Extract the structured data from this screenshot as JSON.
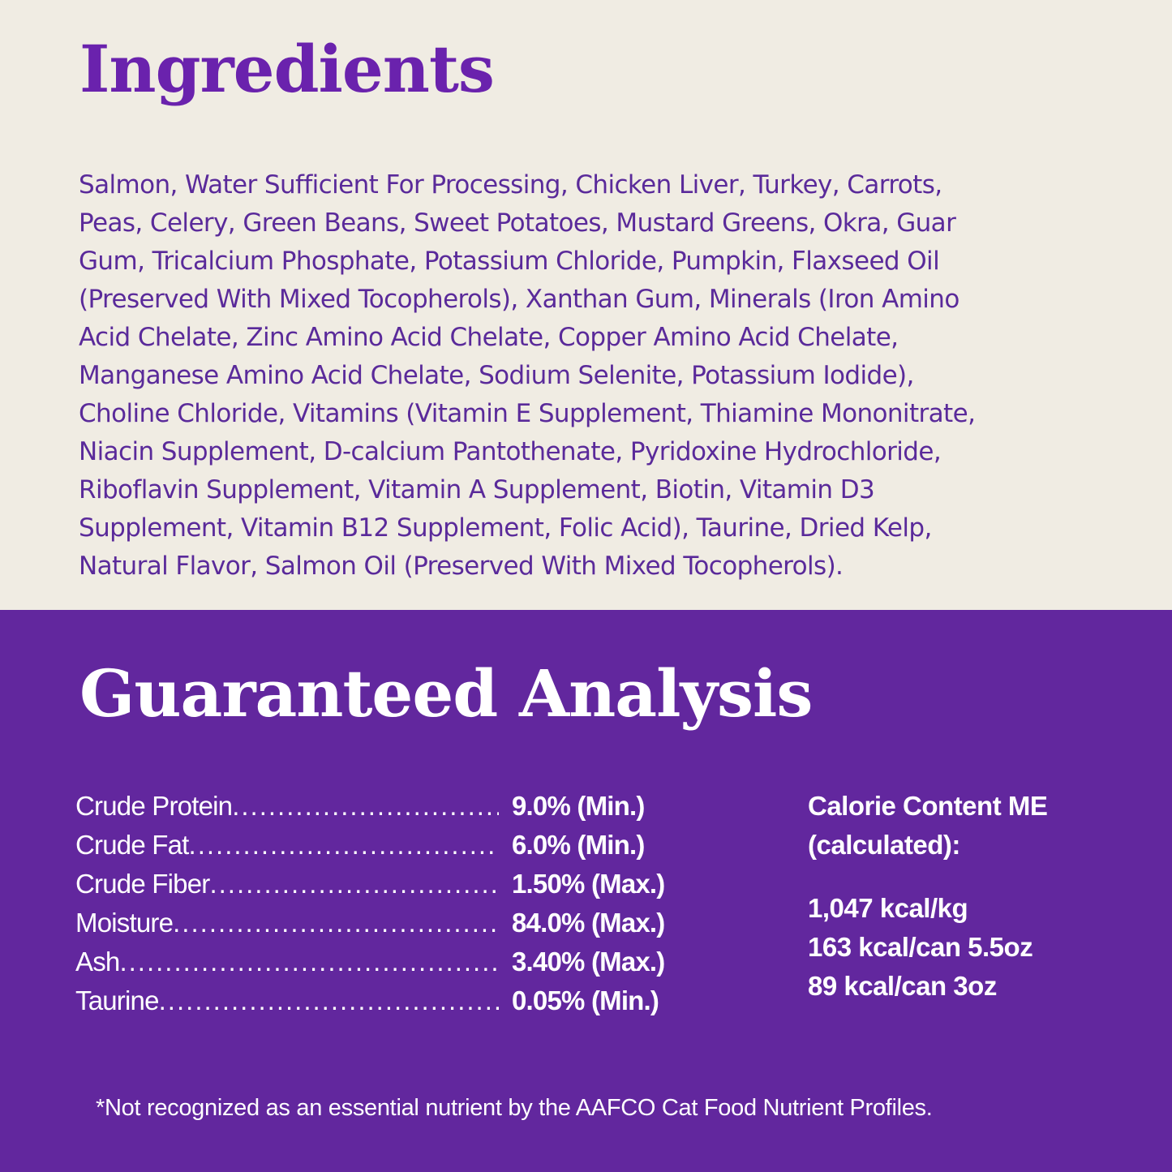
{
  "ingredients": {
    "title": "Ingredients",
    "lines": [
      "Salmon, Water Sufficient For Processing, Chicken Liver, Turkey, Carrots,",
      "Peas, Celery, Green Beans, Sweet Potatoes, Mustard Greens, Okra, Guar",
      "Gum, Tricalcium Phosphate, Potassium Chloride, Pumpkin, Flaxseed Oil",
      "(Preserved With Mixed Tocopherols), Xanthan Gum, Minerals (Iron Amino",
      "Acid Chelate, Zinc Amino Acid Chelate, Copper Amino Acid Chelate,",
      "Manganese Amino Acid Chelate, Sodium Selenite, Potassium Iodide),",
      "Choline Chloride, Vitamins (Vitamin E Supplement, Thiamine Mononitrate,",
      "Niacin Supplement, D-calcium Pantothenate, Pyridoxine Hydrochloride,",
      "Riboflavin Supplement, Vitamin A Supplement, Biotin, Vitamin D3",
      "Supplement, Vitamin B12 Supplement, Folic Acid), Taurine, Dried Kelp,",
      "Natural Flavor, Salmon Oil (Preserved With Mixed Tocopherols)."
    ]
  },
  "analysis": {
    "title": "Guaranteed Analysis",
    "rows": [
      {
        "label": "Crude Protein",
        "value": "9.0% (Min.)"
      },
      {
        "label": "Crude Fat",
        "value": "6.0% (Min.)"
      },
      {
        "label": "Crude Fiber",
        "value": "1.50% (Max.)"
      },
      {
        "label": "Moisture",
        "value": "84.0% (Max.)"
      },
      {
        "label": "Ash",
        "value": "3.40% (Max.)"
      },
      {
        "label": "Taurine",
        "value": "0.05% (Min.)"
      }
    ],
    "calorie": {
      "heading_1": "Calorie Content ME",
      "heading_2": "(calculated):",
      "values": [
        "1,047 kcal/kg",
        "163 kcal/can 5.5oz",
        "89 kcal/can 3oz"
      ]
    },
    "footnote": "*Not recognized as an essential nutrient by the AAFCO Cat Food Nutrient Profiles."
  },
  "colors": {
    "cream": "#f0ece3",
    "purple": "#62279e",
    "heading_purple": "#6a22ad"
  }
}
